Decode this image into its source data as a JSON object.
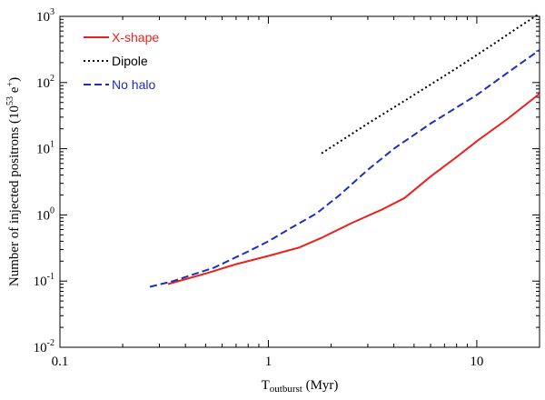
{
  "chart_data": {
    "type": "line",
    "xscale": "log",
    "yscale": "log",
    "xlim": [
      0.1,
      20
    ],
    "ylim": [
      0.01,
      1000
    ],
    "xlabel": {
      "main": "T",
      "sub": "outburst",
      "unit": " (Myr)"
    },
    "ylabel": {
      "main": "Number of injected positrons (10",
      "sup": "53",
      "mid": " e",
      "sup2": "+",
      "end": ")"
    },
    "x_ticks": [
      {
        "value": 0.1,
        "label": "0.1"
      },
      {
        "value": 1,
        "label": "1"
      },
      {
        "value": 10,
        "label": "10"
      }
    ],
    "y_ticks": [
      {
        "value": 0.01,
        "base": "10",
        "exp": "-2"
      },
      {
        "value": 0.1,
        "base": "10",
        "exp": "-1"
      },
      {
        "value": 1,
        "base": "10",
        "exp": "0"
      },
      {
        "value": 10,
        "base": "10",
        "exp": "1"
      },
      {
        "value": 100,
        "base": "10",
        "exp": "2"
      },
      {
        "value": 1000,
        "base": "10",
        "exp": "3"
      }
    ],
    "legend_position": "top-left",
    "series": [
      {
        "name": "X-shape",
        "color": "#e8231e",
        "dash": "solid",
        "x": [
          0.33,
          0.5,
          0.7,
          1.0,
          1.4,
          1.8,
          2.5,
          3.5,
          4.5,
          6,
          8,
          10,
          14,
          20
        ],
        "y": [
          0.09,
          0.13,
          0.18,
          0.24,
          0.32,
          0.45,
          0.75,
          1.2,
          1.8,
          3.8,
          7.5,
          13,
          28,
          68
        ]
      },
      {
        "name": "Dipole",
        "color": "#000000",
        "dash": "dotted",
        "x": [
          1.8,
          3,
          5,
          8,
          12,
          16,
          20
        ],
        "y": [
          8.5,
          24,
          65,
          165,
          380,
          700,
          1100
        ]
      },
      {
        "name": "No halo",
        "color": "#1d2fc2",
        "dash": "dashed",
        "x": [
          0.27,
          0.35,
          0.55,
          0.8,
          1.0,
          1.3,
          1.7,
          2.2,
          3.0,
          4.0,
          6,
          8,
          10,
          14,
          20
        ],
        "y": [
          0.082,
          0.1,
          0.16,
          0.28,
          0.4,
          0.65,
          1.05,
          2.0,
          4.8,
          10,
          24,
          42,
          65,
          140,
          310
        ]
      }
    ]
  }
}
